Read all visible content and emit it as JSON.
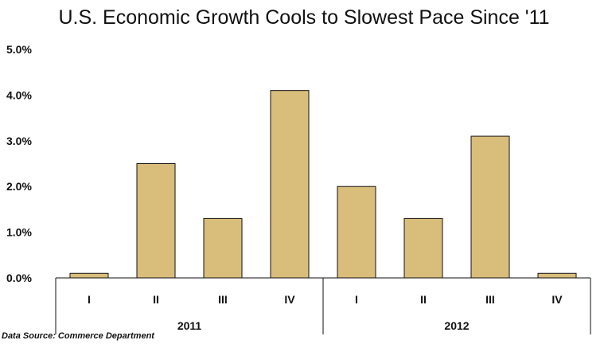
{
  "chart_data": {
    "type": "bar",
    "title": "U.S. Economic Growth Cools to Slowest Pace Since '11",
    "categories": [
      "I",
      "II",
      "III",
      "IV",
      "I",
      "II",
      "III",
      "IV"
    ],
    "groups": [
      {
        "label": "2011",
        "categories": [
          "I",
          "II",
          "III",
          "IV"
        ]
      },
      {
        "label": "2012",
        "categories": [
          "I",
          "II",
          "III",
          "IV"
        ]
      }
    ],
    "values": [
      0.1,
      2.5,
      1.3,
      4.1,
      2.0,
      1.3,
      3.1,
      0.1
    ],
    "ylim": [
      0,
      5
    ],
    "yticks": [
      "0.0%",
      "1.0%",
      "2.0%",
      "3.0%",
      "4.0%",
      "5.0%"
    ],
    "xlabel": "",
    "ylabel": "",
    "grid": false,
    "bar_color": "#D9BD7A",
    "source": "Data Source: Commerce Department"
  }
}
